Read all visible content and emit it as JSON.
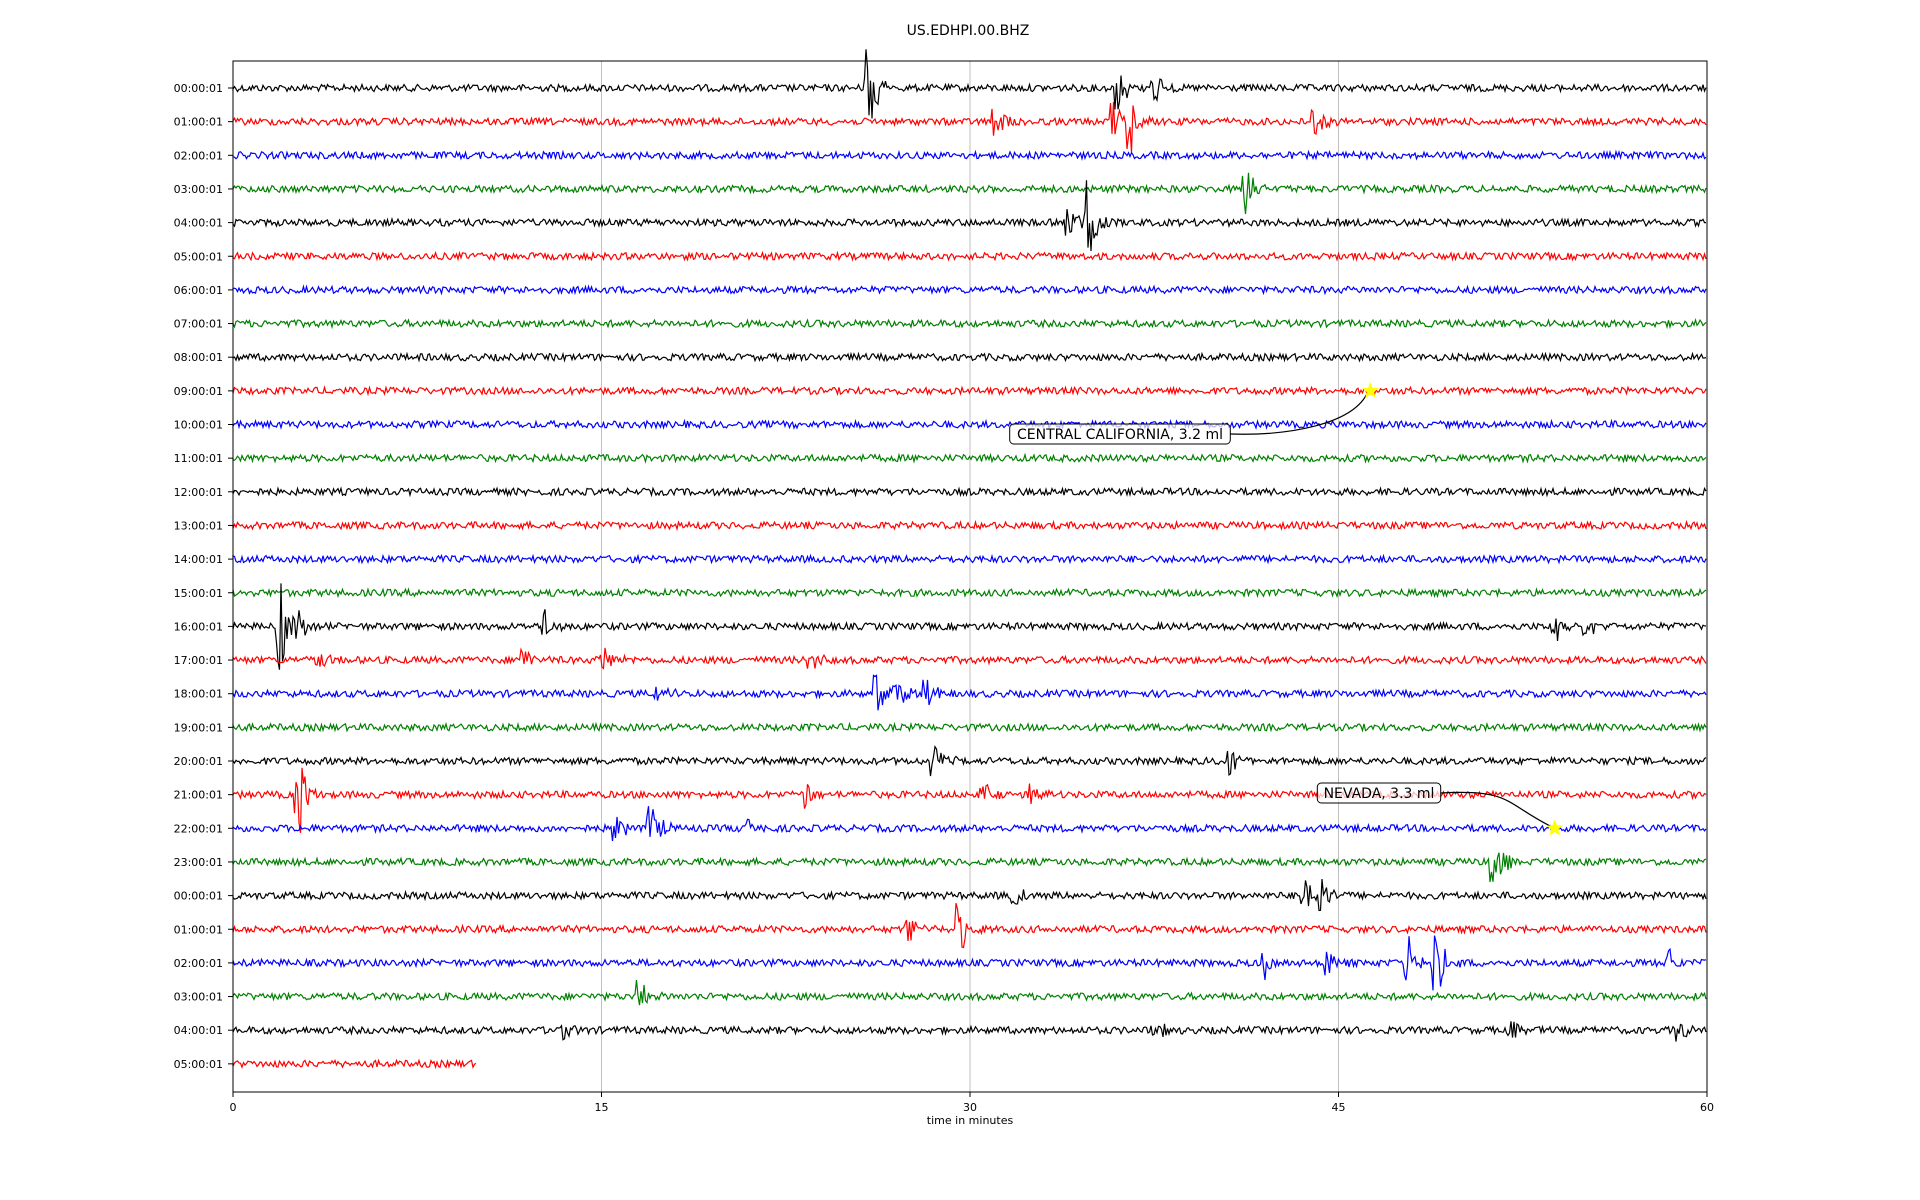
{
  "chart_data": {
    "type": "line",
    "title": "US.EDHPI.00.BHZ",
    "xlabel": "time in minutes",
    "xlim": [
      0,
      60
    ],
    "xticks": [
      0,
      15,
      30,
      45,
      60
    ],
    "grid": "vertical",
    "row_colors": [
      "#000000",
      "#ff0000",
      "#0000ff",
      "#008000"
    ],
    "row_labels": [
      "00:00:01",
      "01:00:01",
      "02:00:01",
      "03:00:01",
      "04:00:01",
      "05:00:01",
      "06:00:01",
      "07:00:01",
      "08:00:01",
      "09:00:01",
      "10:00:01",
      "11:00:01",
      "12:00:01",
      "13:00:01",
      "14:00:01",
      "15:00:01",
      "16:00:01",
      "17:00:01",
      "18:00:01",
      "19:00:01",
      "20:00:01",
      "21:00:01",
      "22:00:01",
      "23:00:01",
      "00:00:01",
      "01:00:01",
      "02:00:01",
      "03:00:01",
      "04:00:01",
      "05:00:01"
    ],
    "last_row_end_minutes": 9.9,
    "events": [
      {
        "row": 0,
        "minute": 25.8,
        "amp": 2.0
      },
      {
        "row": 0,
        "minute": 36.0,
        "amp": 1.0
      },
      {
        "row": 0,
        "minute": 37.5,
        "amp": 0.6
      },
      {
        "row": 1,
        "minute": 31.0,
        "amp": 0.6
      },
      {
        "row": 1,
        "minute": 35.8,
        "amp": 0.9
      },
      {
        "row": 1,
        "minute": 36.5,
        "amp": 1.3
      },
      {
        "row": 1,
        "minute": 44.0,
        "amp": 0.8
      },
      {
        "row": 3,
        "minute": 41.2,
        "amp": 1.4
      },
      {
        "row": 4,
        "minute": 34.0,
        "amp": 0.7
      },
      {
        "row": 4,
        "minute": 34.8,
        "amp": 2.0
      },
      {
        "row": 16,
        "minute": 1.9,
        "amp": 1.7
      },
      {
        "row": 16,
        "minute": 2.6,
        "amp": 0.9
      },
      {
        "row": 16,
        "minute": 12.7,
        "amp": 0.6
      },
      {
        "row": 16,
        "minute": 53.8,
        "amp": 0.6
      },
      {
        "row": 16,
        "minute": 55.0,
        "amp": 0.5
      },
      {
        "row": 17,
        "minute": 3.5,
        "amp": 0.4
      },
      {
        "row": 17,
        "minute": 11.8,
        "amp": 0.5
      },
      {
        "row": 17,
        "minute": 15.0,
        "amp": 0.7
      },
      {
        "row": 17,
        "minute": 23.5,
        "amp": 0.5
      },
      {
        "row": 18,
        "minute": 17.3,
        "amp": 0.5
      },
      {
        "row": 18,
        "minute": 26.2,
        "amp": 1.0
      },
      {
        "row": 18,
        "minute": 27.0,
        "amp": 0.9
      },
      {
        "row": 18,
        "minute": 28.2,
        "amp": 0.7
      },
      {
        "row": 20,
        "minute": 28.5,
        "amp": 0.8
      },
      {
        "row": 20,
        "minute": 40.5,
        "amp": 0.6
      },
      {
        "row": 21,
        "minute": 2.6,
        "amp": 1.9
      },
      {
        "row": 21,
        "minute": 23.3,
        "amp": 0.5
      },
      {
        "row": 21,
        "minute": 30.5,
        "amp": 0.5
      },
      {
        "row": 21,
        "minute": 32.5,
        "amp": 0.5
      },
      {
        "row": 22,
        "minute": 15.5,
        "amp": 0.8
      },
      {
        "row": 22,
        "minute": 17.0,
        "amp": 1.0
      },
      {
        "row": 22,
        "minute": 20.9,
        "amp": 0.4
      },
      {
        "row": 23,
        "minute": 51.3,
        "amp": 1.2
      },
      {
        "row": 24,
        "minute": 31.8,
        "amp": 0.4
      },
      {
        "row": 24,
        "minute": 43.6,
        "amp": 0.9
      },
      {
        "row": 24,
        "minute": 44.3,
        "amp": 1.0
      },
      {
        "row": 25,
        "minute": 27.5,
        "amp": 0.6
      },
      {
        "row": 25,
        "minute": 29.5,
        "amp": 1.1
      },
      {
        "row": 26,
        "minute": 42.0,
        "amp": 0.5
      },
      {
        "row": 26,
        "minute": 44.5,
        "amp": 0.6
      },
      {
        "row": 26,
        "minute": 47.8,
        "amp": 1.0
      },
      {
        "row": 26,
        "minute": 48.9,
        "amp": 1.7
      },
      {
        "row": 26,
        "minute": 58.5,
        "amp": 0.5
      },
      {
        "row": 27,
        "minute": 16.5,
        "amp": 0.6
      },
      {
        "row": 28,
        "minute": 13.3,
        "amp": 0.5
      },
      {
        "row": 28,
        "minute": 37.5,
        "amp": 0.5
      },
      {
        "row": 28,
        "minute": 52.0,
        "amp": 0.5
      },
      {
        "row": 28,
        "minute": 58.8,
        "amp": 0.5
      }
    ],
    "annotations": [
      {
        "text": "CENTRAL CALIFORNIA, 3.2 ml",
        "row": 9,
        "minute": 46.3,
        "marker": "star",
        "marker_color": "#ffff00"
      },
      {
        "text": "NEVADA, 3.3 ml",
        "row": 22,
        "minute": 53.8,
        "marker": "star",
        "marker_color": "#ffff00"
      }
    ]
  }
}
